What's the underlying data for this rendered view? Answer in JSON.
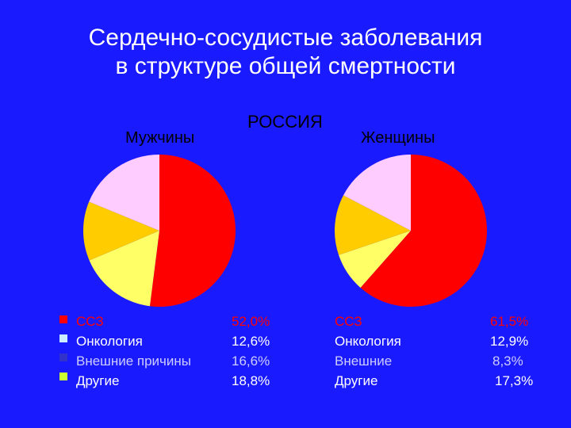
{
  "title_line1": "Сердечно-сосудистые заболевания",
  "title_line2": "в структуре общей смертности",
  "country": "РОССИЯ",
  "colors": {
    "background": "#1a1aff",
    "white": "#ffffff",
    "black": "#000000",
    "red": "#ff0000",
    "pink": "#ffccff",
    "orange": "#ffcc00",
    "yellow": "#ffff66",
    "swatch_red": "#ff0000",
    "swatch_light": "#ccecff",
    "swatch_blue": "#3333cc",
    "swatch_yellow": "#ccff33"
  },
  "chart_data": [
    {
      "type": "pie",
      "title": "Мужчины",
      "labels": [
        "ССЗ",
        "Онкология",
        "Внешние причины",
        "Другие"
      ],
      "values": [
        52.0,
        12.6,
        16.6,
        18.8
      ],
      "value_labels": [
        "52,0%",
        "12,6%",
        "16,6%",
        "18,8%"
      ],
      "slice_order": [
        "ССЗ",
        "Внешние причины",
        "Онкология",
        "Другие"
      ],
      "slice_colors": [
        "#ff0000",
        "#ffff66",
        "#ffcc00",
        "#ffccff"
      ]
    },
    {
      "type": "pie",
      "title": "Женщины",
      "labels": [
        "ССЗ",
        "Онкология",
        "Внешние",
        "Другие"
      ],
      "values": [
        61.5,
        12.9,
        8.3,
        17.3
      ],
      "value_labels": [
        "61,5%",
        "12,9%",
        "8,3%",
        "17,3%"
      ],
      "slice_order": [
        "ССЗ",
        "Внешние",
        "Онкология",
        "Другие"
      ],
      "slice_colors": [
        "#ff0000",
        "#ffff66",
        "#ffcc00",
        "#ffccff"
      ]
    }
  ],
  "legend_text_colors": [
    "#ff0000",
    "#ffffff",
    "#ccccff",
    "#ffffff"
  ],
  "legend_swatch_colors": [
    "#ff0000",
    "#ccecff",
    "#3333cc",
    "#ccff33"
  ]
}
